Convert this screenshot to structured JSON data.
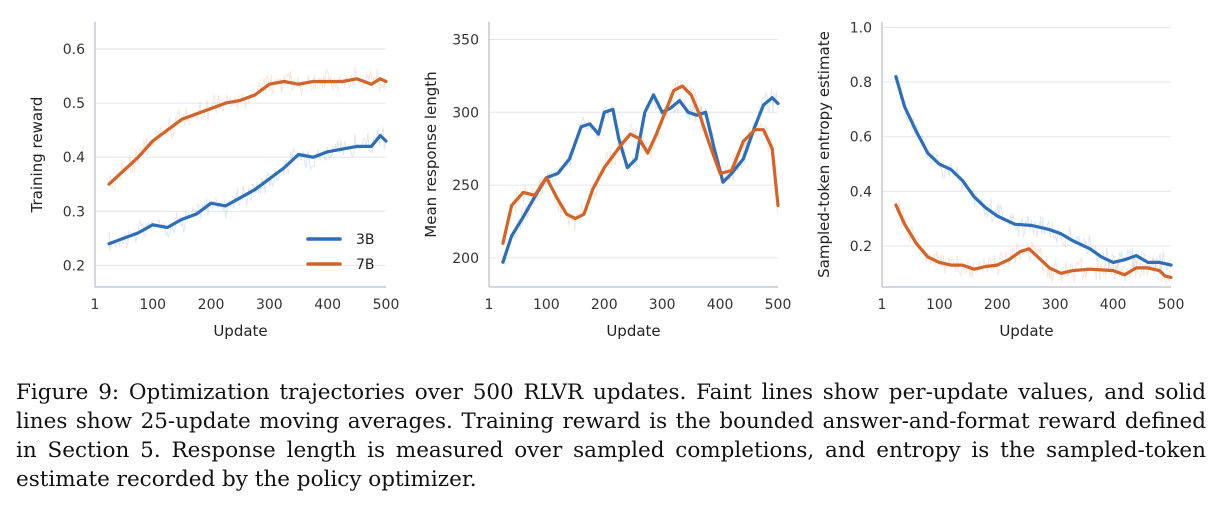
{
  "colors": {
    "3B": "#2f6db5",
    "7B": "#d0642a",
    "grid": "#e4e6ee",
    "axis": "#c7cad6"
  },
  "chart_data": [
    {
      "type": "line",
      "xlabel": "Update",
      "ylabel": "Training reward",
      "xlim": [
        1,
        500
      ],
      "ylim": [
        0.16,
        0.65
      ],
      "xticks": [
        1,
        100,
        200,
        300,
        400,
        500
      ],
      "yticks": [
        0.2,
        0.3,
        0.4,
        0.5,
        0.6
      ],
      "grid": "horizontal",
      "legend": "bottom-right",
      "series": [
        {
          "name": "3B",
          "x": [
            25,
            50,
            75,
            100,
            125,
            150,
            175,
            200,
            225,
            250,
            275,
            300,
            325,
            350,
            375,
            400,
            425,
            450,
            475,
            490,
            500
          ],
          "y": [
            0.24,
            0.25,
            0.26,
            0.275,
            0.27,
            0.285,
            0.295,
            0.315,
            0.31,
            0.325,
            0.34,
            0.36,
            0.38,
            0.405,
            0.4,
            0.41,
            0.415,
            0.42,
            0.42,
            0.44,
            0.43
          ]
        },
        {
          "name": "7B",
          "x": [
            25,
            50,
            75,
            100,
            125,
            150,
            175,
            200,
            225,
            250,
            275,
            300,
            325,
            350,
            375,
            400,
            425,
            450,
            475,
            490,
            500
          ],
          "y": [
            0.35,
            0.375,
            0.4,
            0.43,
            0.45,
            0.47,
            0.48,
            0.49,
            0.5,
            0.505,
            0.515,
            0.535,
            0.54,
            0.535,
            0.54,
            0.54,
            0.54,
            0.545,
            0.535,
            0.545,
            0.54
          ]
        }
      ]
    },
    {
      "type": "line",
      "xlabel": "Update",
      "ylabel": "Mean response length",
      "xlim": [
        1,
        500
      ],
      "ylim": [
        180,
        362
      ],
      "xticks": [
        1,
        100,
        200,
        300,
        400,
        500
      ],
      "yticks": [
        200,
        250,
        300,
        350
      ],
      "grid": "horizontal",
      "series": [
        {
          "name": "3B",
          "x": [
            25,
            40,
            60,
            80,
            100,
            120,
            140,
            160,
            175,
            190,
            200,
            215,
            225,
            240,
            255,
            270,
            285,
            300,
            315,
            330,
            345,
            360,
            375,
            390,
            405,
            420,
            440,
            460,
            475,
            490,
            500
          ],
          "y": [
            197,
            215,
            228,
            242,
            255,
            258,
            268,
            290,
            292,
            285,
            300,
            302,
            282,
            262,
            268,
            300,
            312,
            300,
            303,
            308,
            300,
            298,
            300,
            275,
            252,
            258,
            268,
            290,
            305,
            310,
            306
          ]
        },
        {
          "name": "7B",
          "x": [
            25,
            40,
            60,
            80,
            100,
            120,
            135,
            150,
            165,
            180,
            200,
            215,
            230,
            245,
            260,
            275,
            290,
            305,
            320,
            335,
            350,
            365,
            380,
            400,
            420,
            440,
            460,
            475,
            490,
            500
          ],
          "y": [
            210,
            236,
            245,
            243,
            255,
            240,
            230,
            227,
            230,
            247,
            262,
            270,
            278,
            285,
            282,
            272,
            285,
            300,
            315,
            318,
            312,
            298,
            280,
            258,
            260,
            280,
            288,
            288,
            275,
            236
          ]
        }
      ]
    },
    {
      "type": "line",
      "xlabel": "Update",
      "ylabel": "Sampled-token entropy estimate",
      "xlim": [
        1,
        500
      ],
      "ylim": [
        0.05,
        1.02
      ],
      "xticks": [
        1,
        100,
        200,
        300,
        400,
        500
      ],
      "yticks": [
        0.2,
        0.4,
        0.6,
        0.8,
        1.0
      ],
      "grid": "horizontal",
      "series": [
        {
          "name": "3B",
          "x": [
            25,
            40,
            60,
            80,
            100,
            120,
            140,
            160,
            180,
            200,
            230,
            260,
            290,
            310,
            330,
            360,
            380,
            400,
            420,
            440,
            460,
            480,
            500
          ],
          "y": [
            0.82,
            0.71,
            0.62,
            0.54,
            0.5,
            0.48,
            0.44,
            0.38,
            0.34,
            0.31,
            0.28,
            0.275,
            0.26,
            0.245,
            0.22,
            0.19,
            0.16,
            0.14,
            0.15,
            0.165,
            0.14,
            0.14,
            0.13
          ]
        },
        {
          "name": "7B",
          "x": [
            25,
            40,
            60,
            80,
            100,
            120,
            140,
            160,
            180,
            200,
            220,
            240,
            255,
            270,
            290,
            310,
            330,
            360,
            400,
            420,
            440,
            460,
            480,
            490,
            500
          ],
          "y": [
            0.35,
            0.28,
            0.21,
            0.16,
            0.14,
            0.13,
            0.13,
            0.115,
            0.125,
            0.13,
            0.15,
            0.18,
            0.19,
            0.16,
            0.12,
            0.1,
            0.11,
            0.115,
            0.11,
            0.095,
            0.12,
            0.12,
            0.11,
            0.09,
            0.085
          ]
        }
      ]
    }
  ],
  "caption": "Figure 9: Optimization trajectories over 500 RLVR updates. Faint lines show per-update values, and solid lines show 25-update moving averages. Training reward is the bounded answer-and-format reward defined in Section 5. Response length is measured over sampled completions, and entropy is the sampled-token estimate recorded by the policy optimizer."
}
